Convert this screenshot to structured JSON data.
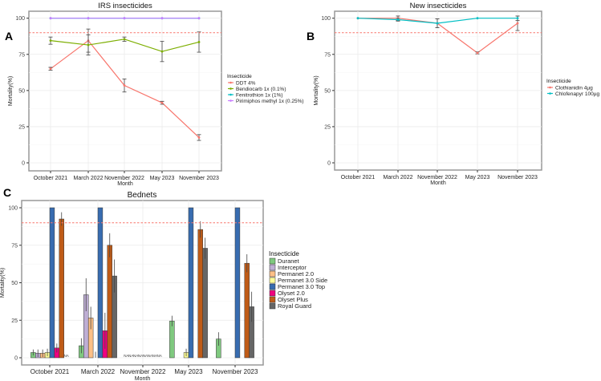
{
  "chart_data": [
    {
      "panel": "A",
      "type": "line",
      "title": "IRS insecticides",
      "xlabel": "Month",
      "ylabel": "Mortality(%)",
      "ylim": [
        0,
        100
      ],
      "yticks": [
        "0",
        "25",
        "50",
        "75",
        "100"
      ],
      "threshold": 90,
      "categories": [
        "October 2021",
        "March 2022",
        "November 2022",
        "May 2023",
        "November 2023"
      ],
      "legend_title": "Insecticide",
      "series": [
        {
          "name": "DDT 4%",
          "color": "#F8766D",
          "values": [
            65,
            84.5,
            53.5,
            41.5,
            17.5
          ],
          "err": [
            1,
            8,
            4.5,
            1,
            2
          ]
        },
        {
          "name": "Bendiocarb 1x (0.1%)",
          "color": "#7CAE00",
          "values": [
            84.5,
            81.5,
            85.5,
            77,
            83.5
          ],
          "err": [
            2.5,
            7,
            1.5,
            7,
            7
          ]
        },
        {
          "name": "Fenitrothion 1x (1%)",
          "color": "#00BFC4",
          "values": [
            100,
            100,
            100,
            100,
            100
          ],
          "err": [
            0,
            0,
            0,
            0,
            0
          ]
        },
        {
          "name": "Pirimiphos methyl 1x (0.25%)",
          "color": "#C77CFF",
          "values": [
            100,
            100,
            100,
            100,
            100
          ],
          "err": [
            0,
            0,
            0,
            0,
            0
          ]
        }
      ]
    },
    {
      "panel": "B",
      "type": "line",
      "title": "New insecticides",
      "xlabel": "Month",
      "ylabel": "Mortality(%)",
      "ylim": [
        0,
        100
      ],
      "yticks": [
        "0",
        "25",
        "50",
        "75",
        "100"
      ],
      "threshold": 90,
      "categories": [
        "October 2021",
        "March 2022",
        "November 2022",
        "May 2023",
        "November 2023"
      ],
      "legend_title": "Insecticide",
      "series": [
        {
          "name": "Clothianidin 4µg",
          "color": "#F8766D",
          "values": [
            100,
            100,
            96.5,
            76,
            96.5
          ],
          "err": [
            0,
            1.5,
            3,
            0.7,
            5
          ]
        },
        {
          "name": "Chlofenapyr 100µg",
          "color": "#00BFC4",
          "values": [
            100,
            99,
            96.5,
            100,
            100
          ],
          "err": [
            0,
            1,
            3,
            0,
            1.5
          ]
        }
      ]
    },
    {
      "panel": "C",
      "type": "bar",
      "title": "Bednets",
      "xlabel": "Month",
      "ylabel": "Mortality(%)",
      "ylim": [
        0,
        100
      ],
      "yticks": [
        "0",
        "25",
        "50",
        "75",
        "100"
      ],
      "threshold": 90,
      "na_label": "NA",
      "categories": [
        "October 2021",
        "March 2022",
        "November 2022",
        "May 2023",
        "November 2023"
      ],
      "legend_title": "Insecticide",
      "series": [
        {
          "name": "Duranet",
          "color": "#7FC97F",
          "values": [
            3.5,
            8,
            null,
            24.5,
            12.5
          ],
          "err": [
            2,
            5,
            null,
            3.5,
            4.5
          ]
        },
        {
          "name": "Interceptor",
          "color": "#BEAED4",
          "values": [
            3,
            42,
            null,
            0,
            0
          ],
          "err": [
            2.5,
            11,
            null,
            0,
            0
          ]
        },
        {
          "name": "Permanet 2.0",
          "color": "#FDC086",
          "values": [
            3,
            26.5,
            null,
            0,
            0
          ],
          "err": [
            2.5,
            7.5,
            null,
            0,
            0
          ]
        },
        {
          "name": "Permanet 3.0 Side",
          "color": "#FFFF99",
          "values": [
            3.5,
            0,
            null,
            3.5,
            0
          ],
          "err": [
            2.5,
            4,
            null,
            2.5,
            0
          ]
        },
        {
          "name": "Permanet 3.0 Top",
          "color": "#386CB0",
          "values": [
            100,
            100,
            null,
            100,
            100
          ],
          "err": [
            0,
            0,
            null,
            0,
            0
          ]
        },
        {
          "name": "Olyset 2.0",
          "color": "#F0027F",
          "values": [
            6.5,
            18,
            null,
            0,
            0
          ],
          "err": [
            3,
            12,
            null,
            0,
            0
          ]
        },
        {
          "name": "Olyset Plus",
          "color": "#BF5B17",
          "values": [
            92.5,
            75,
            null,
            85.5,
            63
          ],
          "err": [
            4.5,
            8,
            null,
            5.5,
            6
          ]
        },
        {
          "name": "Royal Guard",
          "color": "#666666",
          "values": [
            null,
            54.5,
            null,
            73,
            34
          ],
          "err": [
            null,
            11,
            null,
            7,
            10
          ]
        }
      ]
    }
  ],
  "panel_labels": [
    "A",
    "B",
    "C"
  ]
}
